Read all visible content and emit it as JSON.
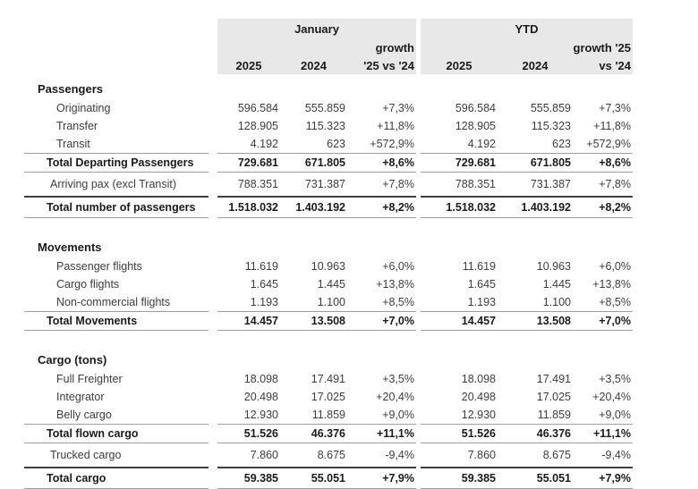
{
  "header": {
    "groups": [
      {
        "period": "January",
        "growth_line1": "growth",
        "growth_line2": "'25 vs '24",
        "years": [
          "2025",
          "2024"
        ]
      },
      {
        "period": "YTD",
        "growth_line1": "growth '25",
        "growth_line2": "vs '24",
        "years": [
          "2025",
          "2024"
        ]
      }
    ]
  },
  "colors": {
    "header_bg": "#e9e8e8",
    "rule_gray": "#9d9d9d",
    "rule_dark": "#3f3f3f"
  },
  "rows": [
    {
      "type": "section",
      "label": "Passengers"
    },
    {
      "type": "data",
      "label": "Originating",
      "jan": [
        "596.584",
        "555.859",
        "+7,3%"
      ],
      "ytd": [
        "596.584",
        "555.859",
        "+7,3%"
      ]
    },
    {
      "type": "data",
      "label": "Transfer",
      "jan": [
        "128.905",
        "115.323",
        "+11,8%"
      ],
      "ytd": [
        "128.905",
        "115.323",
        "+11,8%"
      ]
    },
    {
      "type": "data",
      "label": "Transit",
      "jan": [
        "4.192",
        "623",
        "+572,9%"
      ],
      "ytd": [
        "4.192",
        "623",
        "+572,9%"
      ]
    },
    {
      "type": "total",
      "label": "Total Departing Passengers",
      "jan": [
        "729.681",
        "671.805",
        "+8,6%"
      ],
      "ytd": [
        "729.681",
        "671.805",
        "+8,6%"
      ]
    },
    {
      "type": "single",
      "label": "Arriving pax (excl Transit)",
      "jan": [
        "788.351",
        "731.387",
        "+7,8%"
      ],
      "ytd": [
        "788.351",
        "731.387",
        "+7,8%"
      ]
    },
    {
      "type": "grand",
      "label": "Total number of passengers",
      "jan": [
        "1.518.032",
        "1.403.192",
        "+8,2%"
      ],
      "ytd": [
        "1.518.032",
        "1.403.192",
        "+8,2%"
      ]
    },
    {
      "type": "spacer"
    },
    {
      "type": "section",
      "label": "Movements"
    },
    {
      "type": "data",
      "label": "Passenger flights",
      "jan": [
        "11.619",
        "10.963",
        "+6,0%"
      ],
      "ytd": [
        "11.619",
        "10.963",
        "+6,0%"
      ]
    },
    {
      "type": "data",
      "label": "Cargo flights",
      "jan": [
        "1.645",
        "1.445",
        "+13,8%"
      ],
      "ytd": [
        "1.645",
        "1.445",
        "+13,8%"
      ]
    },
    {
      "type": "data",
      "label": "Non-commercial flights",
      "jan": [
        "1.193",
        "1.100",
        "+8,5%"
      ],
      "ytd": [
        "1.193",
        "1.100",
        "+8,5%"
      ]
    },
    {
      "type": "total",
      "label": "Total Movements",
      "jan": [
        "14.457",
        "13.508",
        "+7,0%"
      ],
      "ytd": [
        "14.457",
        "13.508",
        "+7,0%"
      ]
    },
    {
      "type": "spacer"
    },
    {
      "type": "section",
      "label": "Cargo (tons)"
    },
    {
      "type": "data",
      "label": "Full Freighter",
      "jan": [
        "18.098",
        "17.491",
        "+3,5%"
      ],
      "ytd": [
        "18.098",
        "17.491",
        "+3,5%"
      ]
    },
    {
      "type": "data",
      "label": "Integrator",
      "jan": [
        "20.498",
        "17.025",
        "+20,4%"
      ],
      "ytd": [
        "20.498",
        "17.025",
        "+20,4%"
      ]
    },
    {
      "type": "data",
      "label": "Belly cargo",
      "jan": [
        "12.930",
        "11.859",
        "+9,0%"
      ],
      "ytd": [
        "12.930",
        "11.859",
        "+9,0%"
      ]
    },
    {
      "type": "total",
      "label": "Total flown cargo",
      "jan": [
        "51.526",
        "46.376",
        "+11,1%"
      ],
      "ytd": [
        "51.526",
        "46.376",
        "+11,1%"
      ]
    },
    {
      "type": "single",
      "label": "Trucked cargo",
      "jan": [
        "7.860",
        "8.675",
        "-9,4%"
      ],
      "ytd": [
        "7.860",
        "8.675",
        "-9,4%"
      ]
    },
    {
      "type": "grand",
      "label": "Total cargo",
      "jan": [
        "59.385",
        "55.051",
        "+7,9%"
      ],
      "ytd": [
        "59.385",
        "55.051",
        "+7,9%"
      ]
    }
  ]
}
